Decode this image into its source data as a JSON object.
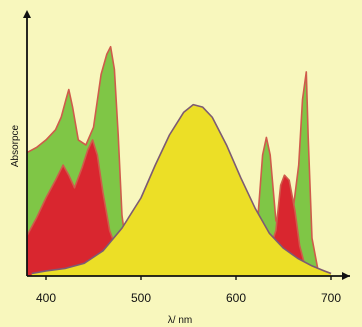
{
  "chart_data": {
    "type": "area",
    "title": "",
    "xlabel": "λ/ nm",
    "ylabel": "Absorpce",
    "xlim": [
      380,
      720
    ],
    "ylim": [
      0,
      1
    ],
    "xticks": [
      "400",
      "500",
      "600",
      "700"
    ],
    "grid": false,
    "legend": "none",
    "colors": {
      "background": "#f8f7bd",
      "green": "#7fc646",
      "red": "#d9262f",
      "yellow": "#ecdf26",
      "redOutline": "#cf5b4b",
      "yellowOutline": "#7d5b73",
      "axis": "#111111"
    },
    "series": [
      {
        "values": [
          [
            380,
            0.49
          ],
          [
            390,
            0.51
          ],
          [
            400,
            0.54
          ],
          [
            410,
            0.58
          ],
          [
            416,
            0.63
          ],
          [
            421,
            0.7
          ],
          [
            424,
            0.74
          ],
          [
            428,
            0.67
          ],
          [
            434,
            0.54
          ],
          [
            442,
            0.52
          ],
          [
            450,
            0.59
          ],
          [
            458,
            0.8
          ],
          [
            464,
            0.88
          ],
          [
            468,
            0.91
          ],
          [
            472,
            0.82
          ],
          [
            476,
            0.56
          ],
          [
            480,
            0.24
          ],
          [
            485,
            0.1
          ],
          [
            495,
            0.05
          ],
          [
            520,
            0.04
          ],
          [
            560,
            0.04
          ],
          [
            600,
            0.05
          ],
          [
            615,
            0.06
          ],
          [
            622,
            0.18
          ],
          [
            628,
            0.48
          ],
          [
            632,
            0.55
          ],
          [
            636,
            0.48
          ],
          [
            642,
            0.22
          ],
          [
            648,
            0.18
          ],
          [
            654,
            0.22
          ],
          [
            660,
            0.26
          ],
          [
            666,
            0.44
          ],
          [
            670,
            0.7
          ],
          [
            674,
            0.81
          ],
          [
            676,
            0.55
          ],
          [
            680,
            0.15
          ],
          [
            686,
            0.03
          ],
          [
            700,
            0.01
          ]
        ]
      },
      {
        "values": [
          [
            380,
            0.16
          ],
          [
            390,
            0.23
          ],
          [
            400,
            0.31
          ],
          [
            410,
            0.38
          ],
          [
            418,
            0.44
          ],
          [
            424,
            0.4
          ],
          [
            430,
            0.35
          ],
          [
            438,
            0.43
          ],
          [
            444,
            0.5
          ],
          [
            449,
            0.54
          ],
          [
            454,
            0.48
          ],
          [
            460,
            0.33
          ],
          [
            467,
            0.18
          ],
          [
            474,
            0.11
          ],
          [
            485,
            0.07
          ],
          [
            500,
            0.05
          ],
          [
            560,
            0.05
          ],
          [
            620,
            0.06
          ],
          [
            635,
            0.1
          ],
          [
            642,
            0.18
          ],
          [
            647,
            0.36
          ],
          [
            651,
            0.4
          ],
          [
            656,
            0.38
          ],
          [
            662,
            0.26
          ],
          [
            667,
            0.12
          ],
          [
            674,
            0.02
          ],
          [
            685,
            0.01
          ]
        ]
      },
      {
        "values": [
          [
            385,
            0.01
          ],
          [
            400,
            0.02
          ],
          [
            420,
            0.03
          ],
          [
            440,
            0.05
          ],
          [
            460,
            0.1
          ],
          [
            480,
            0.19
          ],
          [
            500,
            0.31
          ],
          [
            515,
            0.44
          ],
          [
            530,
            0.56
          ],
          [
            545,
            0.65
          ],
          [
            555,
            0.68
          ],
          [
            565,
            0.67
          ],
          [
            575,
            0.63
          ],
          [
            590,
            0.52
          ],
          [
            605,
            0.39
          ],
          [
            620,
            0.27
          ],
          [
            635,
            0.17
          ],
          [
            650,
            0.11
          ],
          [
            665,
            0.07
          ],
          [
            680,
            0.04
          ],
          [
            693,
            0.02
          ],
          [
            700,
            0.01
          ]
        ]
      }
    ]
  }
}
